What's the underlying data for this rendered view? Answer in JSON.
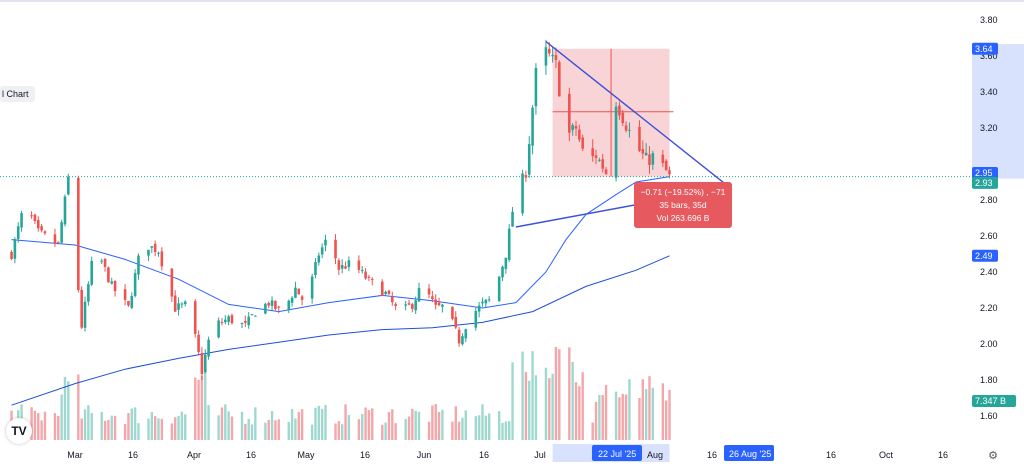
{
  "chart_label": "l Chart",
  "tv_logo": "TV",
  "settings_icon": "gear-icon",
  "colors": {
    "up": "#26a69a",
    "down": "#ef5350",
    "ma_fast": "#2962ff",
    "ma_slow": "#1e4fd8",
    "trend": "#3f51d7",
    "measure_fill": "#f6c6c8",
    "measure_box": "#e5595f",
    "vol_up": "#9fd8cf",
    "vol_down": "#f3a7aa",
    "highlight": "#c9d6fb",
    "badge": "#2962ff"
  },
  "chart_data": {
    "type": "candlestick",
    "title": "",
    "y_axis": {
      "ticks": [
        "3.80",
        "3.60",
        "3.40",
        "3.20",
        "2.80",
        "2.60",
        "2.40",
        "2.20",
        "2.00",
        "1.80",
        "1.60"
      ],
      "ylim": [
        1.45,
        3.85
      ]
    },
    "x_axis": {
      "ticks": [
        "Mar",
        "16",
        "Apr",
        "16",
        "May",
        "16",
        "Jun",
        "16",
        "Jul",
        "Aug",
        "16",
        "16",
        "Oct",
        "16"
      ]
    },
    "price_badges": {
      "high_zone": "3.64",
      "alt_price": "2.95",
      "last_price": "2.93",
      "ma_slow": "2.49",
      "volume": "7.347 B"
    },
    "date_badges": {
      "start": "22 Jul '25",
      "end": "26 Aug '25"
    },
    "measurement": {
      "change": "−0.71 (−19.52%) , −71",
      "bars": "35 bars, 35d",
      "volume": "Vol 263.696 B"
    },
    "price_path": [
      [
        "Feb 10",
        2.5
      ],
      [
        "Feb 14",
        2.78
      ],
      [
        "Feb 18",
        2.62
      ],
      [
        "Feb 24",
        2.55
      ],
      [
        "Feb 27",
        2.92
      ],
      [
        "Mar 3",
        2.1
      ],
      [
        "Mar 7",
        2.55
      ],
      [
        "Mar 12",
        2.32
      ],
      [
        "Mar 17",
        2.2
      ],
      [
        "Mar 21",
        2.56
      ],
      [
        "Mar 26",
        2.52
      ],
      [
        "Mar 31",
        2.2
      ],
      [
        "Apr 4",
        2.22
      ],
      [
        "Apr 8",
        1.85
      ],
      [
        "Apr 11",
        2.1
      ],
      [
        "Apr 16",
        2.14
      ],
      [
        "Apr 21",
        2.1
      ],
      [
        "Apr 24",
        2.18
      ],
      [
        "Apr 28",
        2.23
      ],
      [
        "May 2",
        2.17
      ],
      [
        "May 6",
        2.31
      ],
      [
        "May 9",
        2.22
      ],
      [
        "May 13",
        2.5
      ],
      [
        "May 16",
        2.6
      ],
      [
        "May 19",
        2.42
      ],
      [
        "May 23",
        2.45
      ],
      [
        "May 28",
        2.35
      ],
      [
        "Jun 2",
        2.28
      ],
      [
        "Jun 6",
        2.17
      ],
      [
        "Jun 10",
        2.22
      ],
      [
        "Jun 13",
        2.33
      ],
      [
        "Jun 17",
        2.2
      ],
      [
        "Jun 20",
        2.21
      ],
      [
        "Jun 24",
        2.02
      ],
      [
        "Jun 27",
        2.15
      ],
      [
        "Jul 1",
        2.22
      ],
      [
        "Jul 4",
        2.25
      ],
      [
        "Jul 8",
        2.5
      ],
      [
        "Jul 11",
        2.86
      ],
      [
        "Jul 14",
        2.95
      ],
      [
        "Jul 17",
        3.5
      ],
      [
        "Jul 20",
        3.62
      ],
      [
        "Jul 23",
        3.55
      ],
      [
        "Jul 26",
        3.15
      ],
      [
        "Jul 29",
        3.2
      ],
      [
        "Aug 1",
        3.0
      ],
      [
        "Aug 4",
        3.05
      ],
      [
        "Aug 7",
        2.95
      ],
      [
        "Aug 10",
        3.35
      ],
      [
        "Aug 13",
        3.22
      ],
      [
        "Aug 16",
        3.1
      ],
      [
        "Aug 19",
        3.02
      ],
      [
        "Aug 22",
        3.05
      ],
      [
        "Aug 26",
        2.93
      ]
    ],
    "ma_fast": [
      [
        "Feb 10",
        2.58
      ],
      [
        "Mar 1",
        2.55
      ],
      [
        "Mar 16",
        2.47
      ],
      [
        "Apr 1",
        2.36
      ],
      [
        "Apr 16",
        2.22
      ],
      [
        "May 1",
        2.18
      ],
      [
        "May 16",
        2.23
      ],
      [
        "Jun 1",
        2.27
      ],
      [
        "Jun 16",
        2.24
      ],
      [
        "Jul 1",
        2.2
      ],
      [
        "Jul 11",
        2.23
      ],
      [
        "Jul 20",
        2.4
      ],
      [
        "Jul 26",
        2.58
      ],
      [
        "Aug 1",
        2.72
      ],
      [
        "Aug 10",
        2.83
      ],
      [
        "Aug 16",
        2.9
      ],
      [
        "Aug 26",
        2.93
      ]
    ],
    "ma_slow": [
      [
        "Feb 10",
        1.66
      ],
      [
        "Mar 1",
        1.78
      ],
      [
        "Mar 16",
        1.86
      ],
      [
        "Apr 1",
        1.92
      ],
      [
        "Apr 16",
        1.97
      ],
      [
        "May 1",
        2.01
      ],
      [
        "May 16",
        2.05
      ],
      [
        "Jun 1",
        2.08
      ],
      [
        "Jun 16",
        2.09
      ],
      [
        "Jul 1",
        2.12
      ],
      [
        "Jul 16",
        2.18
      ],
      [
        "Aug 1",
        2.32
      ],
      [
        "Aug 16",
        2.41
      ],
      [
        "Aug 26",
        2.49
      ]
    ],
    "trendlines": [
      {
        "name": "upper",
        "from": [
          "Jul 20",
          3.68
        ],
        "to": [
          "Sep 13",
          2.87
        ]
      },
      {
        "name": "lower",
        "from": [
          "Jul 11",
          2.65
        ],
        "to": [
          "Sep 13",
          2.87
        ]
      }
    ],
    "measure_range": {
      "from": "Jul 22",
      "to": "Aug 26",
      "high": 3.64,
      "low": 2.93,
      "mid": 3.29
    }
  }
}
